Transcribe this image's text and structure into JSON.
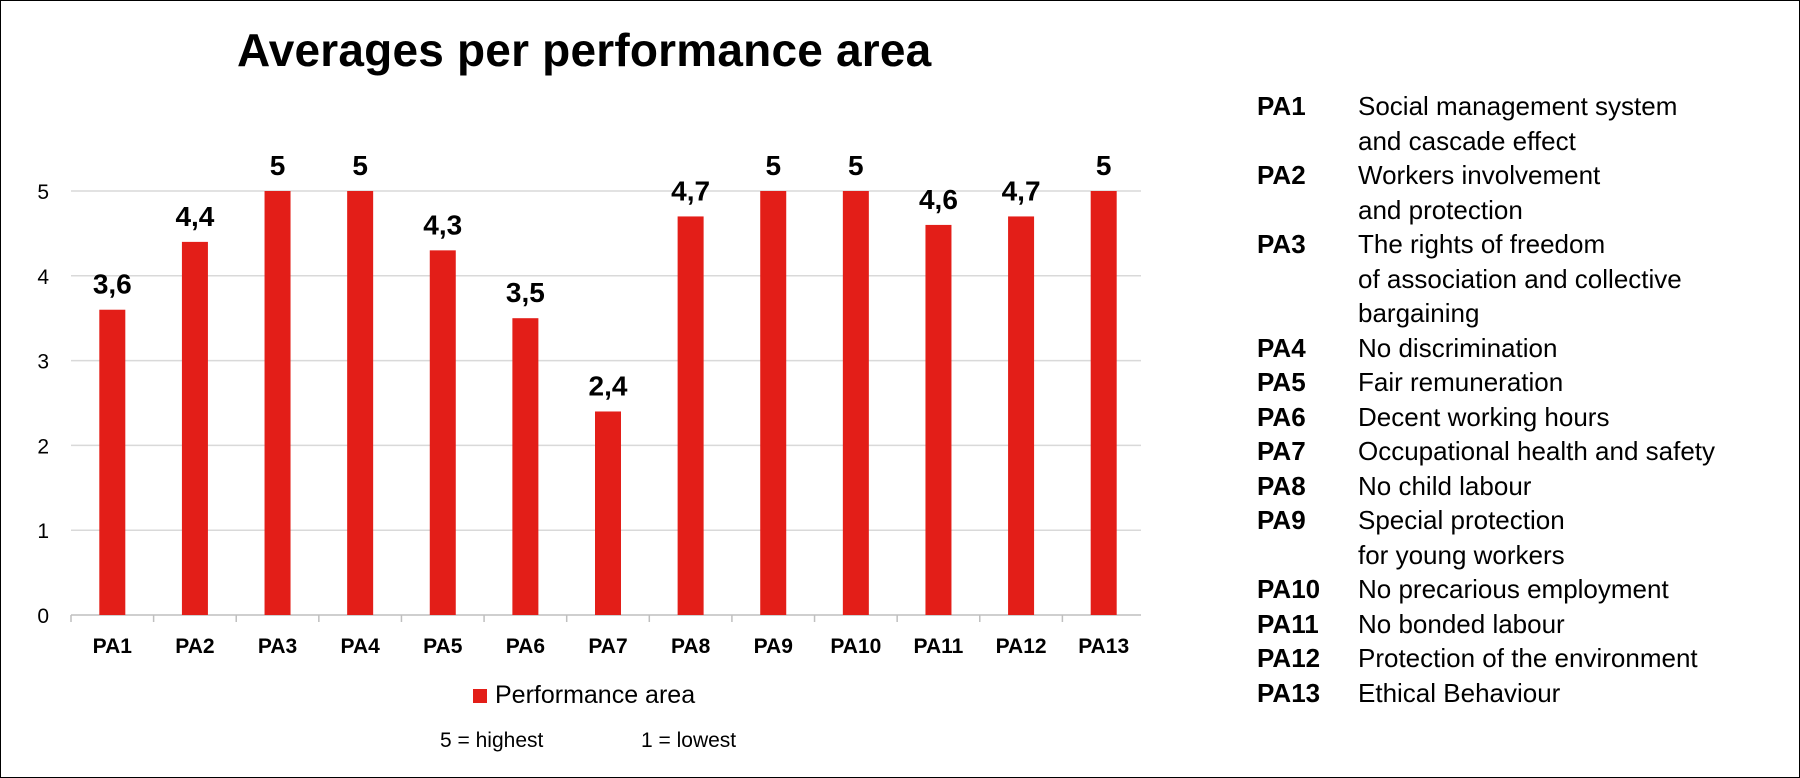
{
  "chart_data": {
    "type": "bar",
    "title": "Averages per performance area",
    "categories": [
      "PA1",
      "PA2",
      "PA3",
      "PA4",
      "PA5",
      "PA6",
      "PA7",
      "PA8",
      "PA9",
      "PA10",
      "PA11",
      "PA12",
      "PA13"
    ],
    "series": [
      {
        "name": "Performance area",
        "values": [
          3.6,
          4.4,
          5,
          5,
          4.3,
          3.5,
          2.4,
          4.7,
          5,
          5,
          4.6,
          4.7,
          5
        ],
        "labels": [
          "3,6",
          "4,4",
          "5",
          "5",
          "4,3",
          "3,5",
          "2,4",
          "4,7",
          "5",
          "5",
          "4,6",
          "4,7",
          "5"
        ],
        "color": "#e31e18"
      }
    ],
    "yticks": [
      0,
      1,
      2,
      3,
      4,
      5
    ],
    "ylim": [
      0,
      5
    ],
    "xlabel": "",
    "ylabel": "",
    "grid": true,
    "legend": "bottom"
  },
  "notes": {
    "highest": "5 = highest",
    "lowest": "1 = lowest"
  },
  "performance_areas": [
    {
      "code": "PA1",
      "description": "Social management system\nand cascade effect"
    },
    {
      "code": "PA2",
      "description": "Workers involvement\nand protection"
    },
    {
      "code": "PA3",
      "description": "The rights of freedom\nof association and collective\nbargaining"
    },
    {
      "code": "PA4",
      "description": "No discrimination"
    },
    {
      "code": "PA5",
      "description": "Fair remuneration"
    },
    {
      "code": "PA6",
      "description": "Decent working hours"
    },
    {
      "code": "PA7",
      "description": "Occupational health and safety"
    },
    {
      "code": "PA8",
      "description": "No child labour"
    },
    {
      "code": "PA9",
      "description": "Special protection\nfor young workers"
    },
    {
      "code": "PA10",
      "description": "No precarious employment"
    },
    {
      "code": "PA11",
      "description": "No bonded labour"
    },
    {
      "code": "PA12",
      "description": "Protection of the environment"
    },
    {
      "code": "PA13",
      "description": "Ethical Behaviour"
    }
  ]
}
